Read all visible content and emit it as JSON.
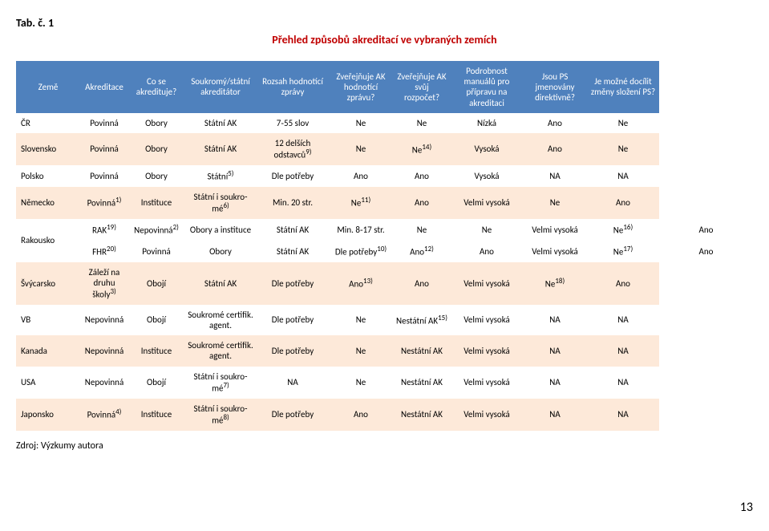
{
  "tab_label": "Tab. č. 1",
  "title": "Přehled způsobů akreditací ve vybraných zemích",
  "headers": [
    "Země",
    "Akreditace",
    "Co se akredituje?",
    "Soukromý/státní akreditátor",
    "Rozsah hodno­tící zprávy",
    "Zveřejňuje AK hodnotící zprávu?",
    "Zveřejňuje AK svůj rozpočet?",
    "Podrobnost manuálů pro přípravu na akreditaci",
    "Jsou PS jmenovány direktivně?",
    "Je možné docílit změ­ny složení PS?"
  ],
  "col_widths": [
    "80px",
    "60px",
    "70px",
    "90px",
    "90px",
    "80px",
    "72px",
    "90px",
    "80px",
    "90px"
  ],
  "rows": [
    {
      "alt": false,
      "cells": [
        "ČR",
        "Povinná",
        "Obory",
        "Státní AK",
        "7‐55 slov",
        "Ne",
        "Ne",
        "Nízká",
        "Ano",
        "Ne"
      ]
    },
    {
      "alt": true,
      "cells": [
        "Slovensko",
        "Povinná",
        "Obory",
        "Státní AK",
        {
          "html": "12 delších odstavců<sup>9)</sup>"
        },
        "Ne",
        {
          "html": "Ne<sup>14)</sup>"
        },
        "Vysoká",
        "Ano",
        "Ne"
      ]
    },
    {
      "alt": false,
      "cells": [
        "Polsko",
        "Povinná",
        "Obory",
        {
          "html": "Státní<sup>5)</sup>"
        },
        "Dle potřeby",
        "Ano",
        "Ano",
        "Vysoká",
        "NA",
        "NA"
      ]
    },
    {
      "alt": true,
      "cells": [
        "Německo",
        {
          "html": "Povinná<sup>1)</sup>"
        },
        "Instituce",
        {
          "html": "Státní i soukro­mé<sup>6)</sup>"
        },
        "Min. 20 str.",
        {
          "html": "Ne<sup>11)</sup>"
        },
        "Ano",
        "Velmi vysoká",
        "Ne",
        "Ano"
      ]
    },
    {
      "alt": false,
      "rowspan_label": "Rakousko",
      "sub": [
        [
          {
            "html": "RAK<sup>19)</sup>"
          },
          {
            "html": "Nepovinná<sup>2)</sup>"
          },
          "Obory a instituce",
          "Státní AK",
          "Min. 8‐17 str.",
          "Ne",
          "Ne",
          "Velmi vysoká",
          {
            "html": "Ne<sup>16)</sup>"
          },
          "Ano"
        ],
        [
          {
            "html": "FHR<sup>20)</sup>"
          },
          "Povinná",
          "Obory",
          "Státní AK",
          {
            "html": "Dle potřeby<sup>10)</sup>"
          },
          {
            "html": "Ano<sup>12)</sup>"
          },
          "Ano",
          "Velmi vysoká",
          {
            "html": "Ne<sup>17)</sup>"
          },
          "Ano"
        ]
      ]
    },
    {
      "alt": true,
      "cells": [
        "Švýcarsko",
        {
          "html": "Záleží na druhu školy<sup>3)</sup>"
        },
        "Obojí",
        "Státní AK",
        "Dle potřeby",
        {
          "html": "Ano<sup>13)</sup>"
        },
        "Ano",
        "Velmi vysoká",
        {
          "html": "Ne<sup>18)</sup>"
        },
        "Ano"
      ]
    },
    {
      "alt": false,
      "cells": [
        "VB",
        "Nepovinná",
        "Obojí",
        "Soukromé certi­fik. agent.",
        "Dle potřeby",
        "Ne",
        {
          "html": "Nestátní AK<sup>15)</sup>"
        },
        "Velmi vysoká",
        "NA",
        "NA"
      ]
    },
    {
      "alt": true,
      "cells": [
        "Kanada",
        "Nepovinná",
        "Instituce",
        "Soukromé certi­fik. agent.",
        "Dle potřeby",
        "Ne",
        "Nestátní AK",
        "Velmi vysoká",
        "NA",
        "NA"
      ]
    },
    {
      "alt": false,
      "cells": [
        "USA",
        "Nepovinná",
        "Obojí",
        {
          "html": "Státní i soukro­mé<sup>7)</sup>"
        },
        "NA",
        "Ne",
        "Nestátní AK",
        "Velmi vysoká",
        "NA",
        "NA"
      ]
    },
    {
      "alt": true,
      "cells": [
        "Japonsko",
        {
          "html": "Povinná<sup>4)</sup>"
        },
        "Instituce",
        {
          "html": "Státní i soukro­mé<sup>8)</sup>"
        },
        "Dle potřeby",
        "Ano",
        "Nestátní AK",
        "Velmi vysoká",
        "NA",
        "NA"
      ]
    }
  ],
  "source": "Zdroj: Výzkumy autora",
  "page_number": "13"
}
